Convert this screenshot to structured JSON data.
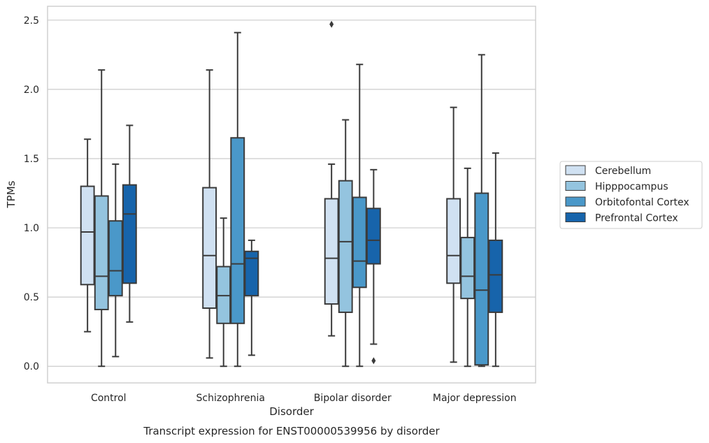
{
  "chart_data": {
    "type": "box",
    "xlabel": "Disorder",
    "ylabel": "TPMs",
    "caption": "Transcript expression for ENST00000539956 by disorder",
    "ylim": [
      -0.12,
      2.6
    ],
    "yticks": [
      0.0,
      0.5,
      1.0,
      1.5,
      2.0,
      2.5
    ],
    "ytick_labels": [
      "0.0",
      "0.5",
      "1.0",
      "1.5",
      "2.0",
      "2.5"
    ],
    "grid": true,
    "legend_position": "right",
    "categories": [
      "Control",
      "Schizophrenia",
      "Bipolar disorder",
      "Major depression"
    ],
    "series": [
      {
        "name": "Cerebellum",
        "color": "#d0e1f2",
        "boxes": [
          {
            "whislo": 0.25,
            "q1": 0.59,
            "med": 0.97,
            "q3": 1.3,
            "whishi": 1.64,
            "fliers": []
          },
          {
            "whislo": 0.06,
            "q1": 0.42,
            "med": 0.8,
            "q3": 1.29,
            "whishi": 2.14,
            "fliers": []
          },
          {
            "whislo": 0.22,
            "q1": 0.45,
            "med": 0.78,
            "q3": 1.21,
            "whishi": 1.46,
            "fliers": [
              2.47
            ]
          },
          {
            "whislo": 0.03,
            "q1": 0.6,
            "med": 0.8,
            "q3": 1.21,
            "whishi": 1.87,
            "fliers": []
          }
        ]
      },
      {
        "name": "Hipppocampus",
        "color": "#94c4df",
        "boxes": [
          {
            "whislo": 0.0,
            "q1": 0.41,
            "med": 0.65,
            "q3": 1.23,
            "whishi": 2.14,
            "fliers": []
          },
          {
            "whislo": 0.0,
            "q1": 0.31,
            "med": 0.51,
            "q3": 0.72,
            "whishi": 1.07,
            "fliers": []
          },
          {
            "whislo": 0.0,
            "q1": 0.39,
            "med": 0.9,
            "q3": 1.34,
            "whishi": 1.78,
            "fliers": []
          },
          {
            "whislo": 0.0,
            "q1": 0.49,
            "med": 0.65,
            "q3": 0.93,
            "whishi": 1.43,
            "fliers": []
          }
        ]
      },
      {
        "name": "Orbitofontal Cortex",
        "color": "#4a98c9",
        "boxes": [
          {
            "whislo": 0.07,
            "q1": 0.51,
            "med": 0.69,
            "q3": 1.05,
            "whishi": 1.46,
            "fliers": []
          },
          {
            "whislo": 0.0,
            "q1": 0.31,
            "med": 0.74,
            "q3": 1.65,
            "whishi": 2.41,
            "fliers": []
          },
          {
            "whislo": 0.0,
            "q1": 0.57,
            "med": 0.76,
            "q3": 1.22,
            "whishi": 2.18,
            "fliers": []
          },
          {
            "whislo": 0.0,
            "q1": 0.01,
            "med": 0.55,
            "q3": 1.25,
            "whishi": 2.25,
            "fliers": []
          }
        ]
      },
      {
        "name": "Prefrontal Cortex",
        "color": "#1764ab",
        "boxes": [
          {
            "whislo": 0.32,
            "q1": 0.6,
            "med": 1.1,
            "q3": 1.31,
            "whishi": 1.74,
            "fliers": []
          },
          {
            "whislo": 0.08,
            "q1": 0.51,
            "med": 0.78,
            "q3": 0.83,
            "whishi": 0.91,
            "fliers": []
          },
          {
            "whislo": 0.16,
            "q1": 0.74,
            "med": 0.91,
            "q3": 1.14,
            "whishi": 1.42,
            "fliers": [
              0.04
            ]
          },
          {
            "whislo": 0.0,
            "q1": 0.39,
            "med": 0.66,
            "q3": 0.91,
            "whishi": 1.54,
            "fliers": []
          }
        ]
      }
    ]
  }
}
